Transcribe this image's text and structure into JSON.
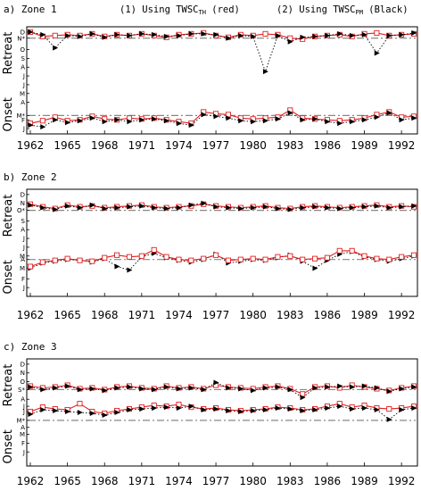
{
  "header": {
    "legend_th": "(1) Using TWSC",
    "legend_th_sub": "TH",
    "legend_th_tail": " (red)",
    "legend_pm": "(2) Using TWSC",
    "legend_pm_sub": "PM",
    "legend_pm_tail": " (Black)"
  },
  "colors": {
    "th": "#e02020",
    "pm": "#000000",
    "climatology": "#888888"
  },
  "chart_data": [
    {
      "type": "line",
      "title": "a) Zone 1",
      "years": [
        1962,
        1963,
        1964,
        1965,
        1966,
        1967,
        1968,
        1969,
        1970,
        1971,
        1972,
        1973,
        1974,
        1975,
        1976,
        1977,
        1978,
        1979,
        1980,
        1981,
        1982,
        1983,
        1984,
        1985,
        1986,
        1987,
        1988,
        1989,
        1990,
        1991,
        1992,
        1993
      ],
      "xticks": [
        1962,
        1965,
        1968,
        1971,
        1974,
        1977,
        1980,
        1983,
        1986,
        1989,
        1992
      ],
      "xlim": [
        1962,
        1993
      ],
      "yticks": [
        {
          "label": "D",
          "v": 11
        },
        {
          "label": "N*",
          "v": 10.3
        },
        {
          "label": "O",
          "v": 9
        },
        {
          "label": "S",
          "v": 8
        },
        {
          "label": "A",
          "v": 7
        },
        {
          "label": "J",
          "v": 6
        },
        {
          "label": "J",
          "v": 5
        },
        {
          "label": "M",
          "v": 4
        },
        {
          "label": "A",
          "v": 3
        },
        {
          "label": "M*",
          "v": 1.5
        },
        {
          "label": "F",
          "v": 1
        },
        {
          "label": "J",
          "v": 0
        }
      ],
      "ylim": [
        -0.6,
        11.6
      ],
      "ylabel_top": "Retreat",
      "ylabel_bottom": "Onset",
      "clim_retreat": 10.3,
      "clim_onset": 1.5,
      "series": [
        {
          "name": "TWSC TH",
          "role": "retreat",
          "values": [
            11,
            10.5,
            10.6,
            10.7,
            10.6,
            10.8,
            10.5,
            10.7,
            10.6,
            10.8,
            10.6,
            10.4,
            10.7,
            10.8,
            10.9,
            10.6,
            10.4,
            10.7,
            10.6,
            10.8,
            10.7,
            10.3,
            10.2,
            10.5,
            10.6,
            10.7,
            10.5,
            10.8,
            10.9,
            10.6,
            10.7,
            10.8
          ]
        },
        {
          "name": "TWSC PM",
          "role": "retreat",
          "values": [
            11,
            10.7,
            9.2,
            10.6,
            10.5,
            10.8,
            10.4,
            10.7,
            10.6,
            10.8,
            10.7,
            10.5,
            10.6,
            10.8,
            10.8,
            10.7,
            10.3,
            10.6,
            10.5,
            6.5,
            10.6,
            9.9,
            10.4,
            10.5,
            10.6,
            10.8,
            10.6,
            10.7,
            8.6,
            10.6,
            10.7,
            10.9
          ]
        },
        {
          "name": "TWSC TH",
          "role": "onset",
          "values": [
            0.6,
            0.9,
            1.3,
            0.9,
            1.0,
            1.4,
            1.1,
            1.0,
            1.2,
            1.1,
            1.2,
            1.0,
            0.8,
            0.6,
            1.9,
            1.7,
            1.6,
            1.2,
            1.1,
            1.2,
            1.3,
            2.1,
            1.2,
            1.1,
            1.0,
            0.9,
            1.0,
            1.2,
            1.6,
            1.9,
            1.3,
            1.4
          ]
        },
        {
          "name": "TWSC PM",
          "role": "onset",
          "values": [
            0.4,
            0.2,
            1.0,
            0.7,
            0.9,
            1.2,
            0.8,
            1.0,
            0.8,
            1.0,
            1.1,
            0.9,
            0.6,
            0.4,
            1.6,
            1.4,
            1.2,
            0.9,
            0.8,
            0.9,
            1.1,
            1.8,
            1.0,
            1.1,
            0.8,
            0.6,
            0.8,
            1.0,
            1.3,
            1.8,
            1.0,
            1.2
          ]
        }
      ]
    },
    {
      "type": "line",
      "title": "b) Zone 2",
      "years": [
        1962,
        1963,
        1964,
        1965,
        1966,
        1967,
        1968,
        1969,
        1970,
        1971,
        1972,
        1973,
        1974,
        1975,
        1976,
        1977,
        1978,
        1979,
        1980,
        1981,
        1982,
        1983,
        1984,
        1985,
        1986,
        1987,
        1988,
        1989,
        1990,
        1991,
        1992,
        1993
      ],
      "xticks": [
        1962,
        1965,
        1968,
        1971,
        1974,
        1977,
        1980,
        1983,
        1986,
        1989,
        1992
      ],
      "xlim": [
        1962,
        1993
      ],
      "yticks": [
        {
          "label": "D",
          "v": 11
        },
        {
          "label": "N",
          "v": 10
        },
        {
          "label": "O*",
          "v": 9.2
        },
        {
          "label": "S",
          "v": 8
        },
        {
          "label": "A",
          "v": 7
        },
        {
          "label": "J",
          "v": 6
        },
        {
          "label": "J",
          "v": 5
        },
        {
          "label": "M",
          "v": 4
        },
        {
          "label": "A",
          "v": 3.6
        },
        {
          "label": "M",
          "v": 2.6
        },
        {
          "label": "F",
          "v": 1.4
        },
        {
          "label": "J",
          "v": 0.4
        }
      ],
      "ylim": [
        -0.6,
        11.6
      ],
      "ylabel_top": "Retreat",
      "ylabel_bottom": "Onset",
      "clim_retreat": 9.2,
      "clim_onset": 3.6,
      "series": [
        {
          "name": "TWSC TH",
          "role": "retreat",
          "values": [
            9.9,
            9.6,
            9.4,
            9.8,
            9.6,
            9.7,
            9.5,
            9.6,
            9.7,
            9.8,
            9.6,
            9.5,
            9.6,
            9.7,
            9.9,
            9.7,
            9.6,
            9.5,
            9.6,
            9.7,
            9.5,
            9.4,
            9.6,
            9.7,
            9.6,
            9.5,
            9.6,
            9.7,
            9.8,
            9.6,
            9.7,
            9.6
          ]
        },
        {
          "name": "TWSC PM",
          "role": "retreat",
          "values": [
            9.8,
            9.5,
            9.3,
            9.7,
            9.5,
            9.8,
            9.4,
            9.5,
            9.6,
            9.7,
            9.5,
            9.4,
            9.5,
            9.8,
            10.0,
            9.6,
            9.5,
            9.4,
            9.5,
            9.6,
            9.4,
            9.3,
            9.5,
            9.6,
            9.5,
            9.4,
            9.5,
            9.6,
            9.7,
            9.5,
            9.6,
            9.7
          ]
        },
        {
          "name": "TWSC PM",
          "role": "onset",
          "values": [
            2.6,
            3.2,
            3.4,
            3.6,
            3.5,
            3.3,
            3.7,
            2.8,
            2.4,
            3.9,
            4.3,
            3.8,
            3.5,
            3.3,
            3.6,
            4.2,
            3.2,
            3.4,
            3.6,
            3.5,
            3.8,
            4.1,
            3.4,
            2.6,
            3.5,
            4.2,
            4.5,
            3.9,
            3.6,
            3.4,
            3.7,
            4.0
          ]
        },
        {
          "name": "TWSC TH",
          "role": "onset",
          "values": [
            2.8,
            3.3,
            3.5,
            3.7,
            3.5,
            3.4,
            3.8,
            4.1,
            3.9,
            4.0,
            4.7,
            3.9,
            3.6,
            3.5,
            3.7,
            4.1,
            3.5,
            3.6,
            3.7,
            3.6,
            3.9,
            4.0,
            3.6,
            3.7,
            3.8,
            4.6,
            4.6,
            4.0,
            3.7,
            3.6,
            3.9,
            4.1
          ]
        }
      ]
    },
    {
      "type": "line",
      "title": "c) Zone 3",
      "years": [
        1962,
        1963,
        1964,
        1965,
        1966,
        1967,
        1968,
        1969,
        1970,
        1971,
        1972,
        1973,
        1974,
        1975,
        1976,
        1977,
        1978,
        1979,
        1980,
        1981,
        1982,
        1983,
        1984,
        1985,
        1986,
        1987,
        1988,
        1989,
        1990,
        1991,
        1992,
        1993
      ],
      "xticks": [
        1962,
        1965,
        1968,
        1971,
        1974,
        1977,
        1980,
        1983,
        1986,
        1989,
        1992
      ],
      "xlim": [
        1962,
        1993
      ],
      "yticks": [
        {
          "label": "D",
          "v": 11
        },
        {
          "label": "N",
          "v": 10
        },
        {
          "label": "O",
          "v": 9
        },
        {
          "label": "S*",
          "v": 8.1
        },
        {
          "label": "A",
          "v": 7
        },
        {
          "label": "J",
          "v": 6.2
        },
        {
          "label": "J",
          "v": 5.6
        },
        {
          "label": "M*",
          "v": 4.6
        },
        {
          "label": "A",
          "v": 3.8
        },
        {
          "label": "M",
          "v": 3
        },
        {
          "label": "F",
          "v": 2
        },
        {
          "label": "J",
          "v": 1
        }
      ],
      "ylim": [
        -0.6,
        11.6
      ],
      "ylabel_top": "Retreat",
      "ylabel_bottom": "Onset",
      "clim_retreat": 8.1,
      "clim_onset": 4.6,
      "series": [
        {
          "name": "TWSC TH",
          "role": "retreat",
          "values": [
            8.5,
            8.3,
            8.4,
            8.6,
            8.2,
            8.3,
            8.1,
            8.4,
            8.5,
            8.3,
            8.2,
            8.5,
            8.3,
            8.4,
            8.2,
            8.6,
            8.4,
            8.3,
            8.2,
            8.4,
            8.5,
            8.2,
            7.6,
            8.4,
            8.5,
            8.3,
            8.6,
            8.4,
            8.2,
            8.0,
            8.3,
            8.5
          ]
        },
        {
          "name": "TWSC PM",
          "role": "retreat",
          "values": [
            8.4,
            8.1,
            8.3,
            8.5,
            8.1,
            8.2,
            8.0,
            8.3,
            8.4,
            8.2,
            8.1,
            8.4,
            8.2,
            8.3,
            8.1,
            8.9,
            8.3,
            8.2,
            8.0,
            8.3,
            8.4,
            8.1,
            7.2,
            8.3,
            8.4,
            8.5,
            8.4,
            8.5,
            8.3,
            7.9,
            8.2,
            8.4
          ]
        },
        {
          "name": "TWSC TH",
          "role": "onset",
          "values": [
            5.6,
            6.1,
            5.9,
            5.8,
            6.5,
            5.6,
            5.4,
            5.7,
            5.9,
            6.1,
            6.3,
            6.2,
            6.4,
            6.1,
            5.9,
            6.0,
            5.8,
            5.7,
            5.8,
            5.9,
            6.1,
            6.0,
            5.8,
            5.9,
            6.2,
            6.5,
            6.1,
            6.3,
            6.0,
            5.9,
            6.0,
            6.2
          ]
        },
        {
          "name": "TWSC PM",
          "role": "onset",
          "values": [
            5.3,
            5.8,
            5.7,
            5.6,
            5.5,
            5.4,
            5.2,
            5.5,
            5.8,
            5.9,
            6.0,
            6.1,
            6.0,
            6.2,
            5.8,
            5.9,
            5.7,
            5.6,
            5.7,
            5.8,
            6.0,
            5.9,
            5.7,
            5.8,
            6.0,
            6.2,
            5.9,
            6.0,
            5.8,
            4.7,
            5.8,
            6.0
          ]
        }
      ]
    }
  ]
}
